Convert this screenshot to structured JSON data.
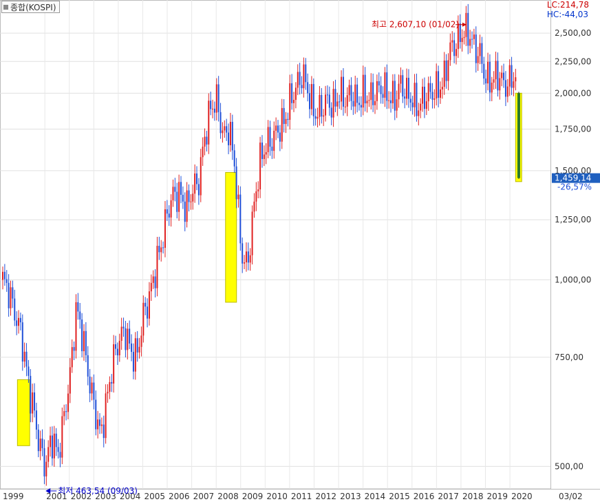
{
  "header": {
    "title": "종합(KOSPI)"
  },
  "corner": {
    "lc": "LC:214,78",
    "hc": "HC:-44,03"
  },
  "annotations": {
    "high": "최고 2,607,10 (01/02)",
    "low": "최저 463,54 (09/03)"
  },
  "current": {
    "value": "1,459,14",
    "change": "-26,57%"
  },
  "colors": {
    "up": "#e02020",
    "down": "#1f4fd8",
    "highlight": "#ffff00",
    "current_badge": "#1f5fbf",
    "highlight_candle": "#e060e0"
  },
  "chart_data": {
    "type": "line",
    "scale": "log",
    "ylim": [
      460,
      2700
    ],
    "y_ticks": [
      {
        "value": 500,
        "label": "500,00"
      },
      {
        "value": 750,
        "label": "750,00"
      },
      {
        "value": 1000,
        "label": "1,000,00"
      },
      {
        "value": 1250,
        "label": "1,250,00"
      },
      {
        "value": 1500,
        "label": "1,500,00"
      },
      {
        "value": 1750,
        "label": "1,750,00"
      },
      {
        "value": 2000,
        "label": "2,000,00"
      },
      {
        "value": 2250,
        "label": "2,250,00"
      },
      {
        "value": 2500,
        "label": "2,500,00"
      }
    ],
    "x_ticks": [
      "1999",
      "2001",
      "2002",
      "2003",
      "2004",
      "2005",
      "2006",
      "2007",
      "2008",
      "2009",
      "2010",
      "2011",
      "2012",
      "2013",
      "2014",
      "2015",
      "2016",
      "2017",
      "2018",
      "2019",
      "2020",
      "03/02"
    ],
    "x_range": [
      1999.0,
      2020.25
    ],
    "series": [
      {
        "x": [
          1999.0,
          1999.25,
          1999.5,
          1999.75,
          2000.0,
          2000.25,
          2000.5,
          2000.75,
          2001.0,
          2001.25,
          2001.5,
          2001.75,
          2002.0,
          2002.25,
          2002.5,
          2002.75,
          2003.0,
          2003.25,
          2003.5,
          2003.75,
          2004.0,
          2004.25,
          2004.5,
          2004.75,
          2005.0,
          2005.25,
          2005.5,
          2005.75,
          2006.0,
          2006.25,
          2006.5,
          2006.75,
          2007.0,
          2007.25,
          2007.5,
          2007.75,
          2008.0,
          2008.25,
          2008.5,
          2008.75,
          2009.0,
          2009.25,
          2009.5,
          2009.75,
          2010.0,
          2010.25,
          2010.5,
          2010.75,
          2011.0,
          2011.25,
          2011.5,
          2011.75,
          2012.0,
          2012.25,
          2012.5,
          2012.75,
          2013.0,
          2013.25,
          2013.5,
          2013.75,
          2014.0,
          2014.25,
          2014.5,
          2014.75,
          2015.0,
          2015.25,
          2015.5,
          2015.75,
          2016.0,
          2016.25,
          2016.5,
          2016.75,
          2017.0,
          2017.25,
          2017.5,
          2017.75,
          2018.0,
          2018.25,
          2018.5,
          2018.75,
          2019.0,
          2019.25,
          2019.5,
          2019.75,
          2020.0,
          2020.1
        ],
        "values": [
          1000,
          960,
          880,
          820,
          700,
          620,
          540,
          500,
          560,
          520,
          600,
          700,
          900,
          820,
          700,
          620,
          560,
          640,
          740,
          800,
          830,
          760,
          760,
          880,
          940,
          1050,
          1150,
          1300,
          1380,
          1370,
          1300,
          1400,
          1440,
          1700,
          1900,
          1950,
          1700,
          1760,
          1500,
          1100,
          1050,
          1300,
          1550,
          1650,
          1680,
          1750,
          1800,
          1950,
          2050,
          2150,
          2000,
          1850,
          1880,
          1950,
          1900,
          2000,
          1950,
          2000,
          1930,
          2000,
          1960,
          2010,
          2050,
          1980,
          1950,
          2070,
          2000,
          1950,
          1900,
          1980,
          2000,
          2030,
          2080,
          2350,
          2400,
          2500,
          2520,
          2380,
          2300,
          2100,
          2100,
          2150,
          2050,
          2100,
          2150,
          2000
        ]
      }
    ],
    "current_close": 1459.14,
    "high": {
      "value": 2607.1,
      "date": "01/02"
    },
    "low": {
      "value": 463.54,
      "date": "09/03"
    }
  }
}
